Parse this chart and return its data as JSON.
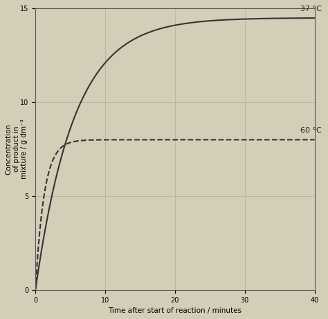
{
  "title": "",
  "xlabel": "Time after start of reaction / minutes",
  "ylabel": "Concentration\nof product in\nmixture / g dm⁻³",
  "xlim": [
    0,
    40
  ],
  "ylim": [
    0,
    15
  ],
  "xticks": [
    0,
    10,
    20,
    30,
    40
  ],
  "yticks": [
    0,
    5,
    10,
    15
  ],
  "curve_37": {
    "label": "37 °C",
    "color": "#333333",
    "linestyle": "solid"
  },
  "curve_60": {
    "label": "60 °C",
    "color": "#333333",
    "linestyle": "dashed"
  },
  "plateau_37": 14.5,
  "plateau_60": 8.0,
  "bg_color": "#d4cdb8",
  "grid_color": "#b8b09a",
  "tick_fontsize": 7,
  "label_fontsize": 7.5,
  "annotation_fontsize": 8
}
